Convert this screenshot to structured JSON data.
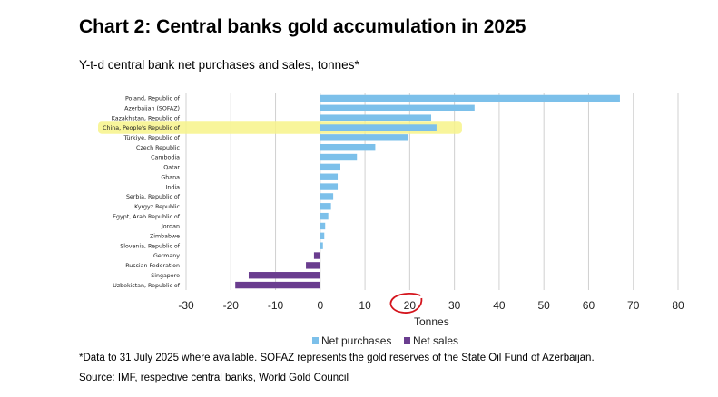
{
  "title": "Chart 2: Central banks gold accumulation in 2025",
  "subtitle": "Y-t-d central bank net purchases and sales, tonnes*",
  "footnote": "*Data to 31 July 2025 where available. SOFAZ represents the gold reserves of the State Oil Fund of Azerbaijan.",
  "source": "Source: IMF, respective central banks, World Gold Council",
  "colors": {
    "net_purchases": "#7cc0ea",
    "net_sales": "#6a3d8f",
    "highlight": "#f7f38a",
    "annotation_circle": "#d4141c",
    "gridline": "#d0d0d0"
  },
  "chart_data": {
    "type": "bar",
    "orientation": "horizontal",
    "categories": [
      "Poland, Republic of",
      "Azerbaijan (SOFAZ)",
      "Kazakhstan, Republic of",
      "China, People's Republic of",
      "Türkiye, Republic of",
      "Czech Republic",
      "Cambodia",
      "Qatar",
      "Ghana",
      "India",
      "Serbia, Republic of",
      "Kyrgyz Republic",
      "Egypt, Arab Republic of",
      "Jordan",
      "Zimbabwe",
      "Slovenia, Republic of",
      "Germany",
      "Russian Federation",
      "Singapore",
      "Uzbekistan, Republic of"
    ],
    "values": [
      67,
      34.5,
      24.8,
      26,
      19.7,
      12.3,
      8.2,
      4.5,
      3.9,
      3.9,
      2.9,
      2.4,
      1.8,
      1.1,
      0.9,
      0.6,
      -1.4,
      -3.2,
      -16,
      -19
    ],
    "series": [
      {
        "name": "Net purchases"
      },
      {
        "name": "Net sales"
      }
    ],
    "xlabel": "Tonnes",
    "xlim": [
      -30,
      80
    ],
    "xticks": [
      "-30",
      "-20",
      "-10",
      "0",
      "10",
      "20",
      "30",
      "40",
      "50",
      "60",
      "70",
      "80"
    ],
    "grid": "vertical",
    "legend": "bottom",
    "highlighted_category": "China, People's Republic of",
    "circled_tick": "20"
  }
}
